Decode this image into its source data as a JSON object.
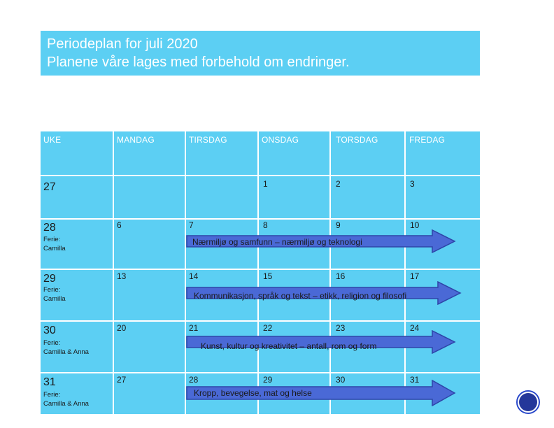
{
  "title": {
    "line1": "Periodeplan for juli 2020",
    "line2": "Planene våre lages med forbehold om endringer."
  },
  "headers": [
    "UKE",
    "MANDAG",
    "TIRSDAG",
    "ONSDAG",
    "TORSDAG",
    "FREDAG"
  ],
  "weeks": [
    {
      "uke": "27",
      "days": [
        "",
        "",
        "1",
        "2",
        "3"
      ],
      "ferie": ""
    },
    {
      "uke": "28",
      "days": [
        "6",
        "7",
        "8",
        "9",
        "10"
      ],
      "ferie": "Ferie:\nCamilla"
    },
    {
      "uke": "29",
      "days": [
        "13",
        "14",
        "15",
        "16",
        "17"
      ],
      "ferie": "Ferie:\nCamilla"
    },
    {
      "uke": "30",
      "days": [
        "20",
        "21",
        "22",
        "23",
        "24"
      ],
      "ferie": "Ferie:\nCamilla & Anna"
    },
    {
      "uke": "31",
      "days": [
        "27",
        "28",
        "29",
        "30",
        "31"
      ],
      "ferie": "Ferie:\nCamilla & Anna"
    }
  ],
  "themes": [
    "Nærmiljø og samfunn – nærmiljø og teknologi",
    "Kommunikasjon, språk og tekst – etikk, religion og filosofi",
    "Kunst, kultur og kreativitet – antall, rom og form",
    "Kropp, bevegelse, mat og helse"
  ],
  "colors": {
    "cell": "#5ccff3",
    "arrow_fill": "#4a69d6",
    "arrow_stroke": "#2e45a8"
  }
}
